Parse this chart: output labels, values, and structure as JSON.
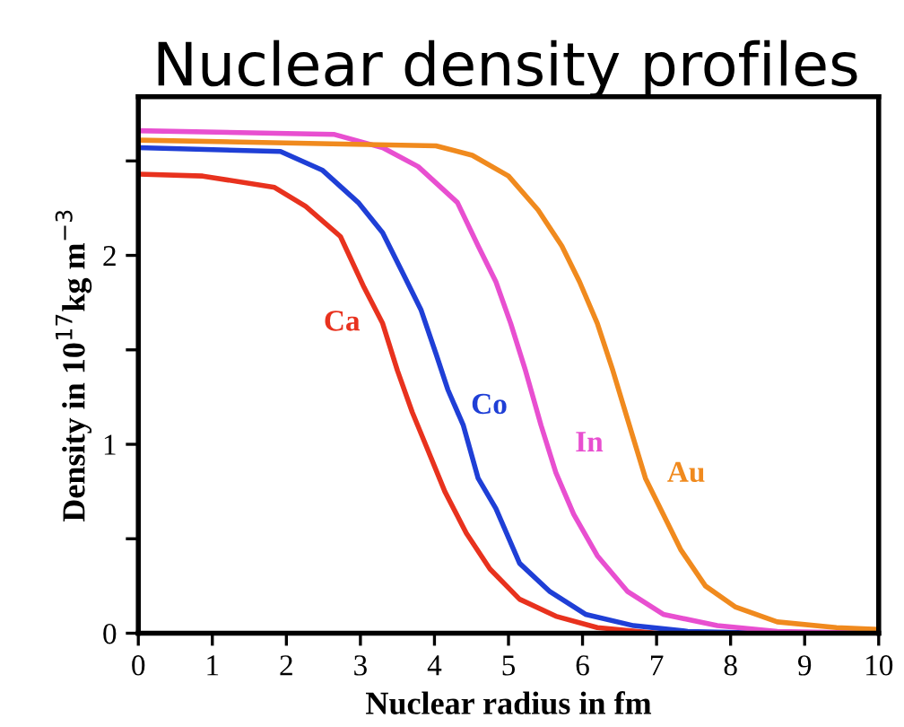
{
  "chart_data": {
    "type": "line",
    "title": "Nuclear density profiles",
    "xlabel": "Nuclear radius in fm",
    "ylabel": "Density in 10$^{17}$kg m$^{−3}$",
    "series": [
      {
        "name": "Ca",
        "color": "#e8321e",
        "x": [
          0,
          0.87,
          1.84,
          2.26,
          2.73,
          3.05,
          3.3,
          3.5,
          3.7,
          3.9,
          4.14,
          4.43,
          4.75,
          5.15,
          5.64,
          6.2,
          7.0,
          10
        ],
        "values": [
          2.43,
          2.42,
          2.36,
          2.26,
          2.1,
          1.83,
          1.64,
          1.39,
          1.17,
          0.98,
          0.75,
          0.53,
          0.34,
          0.18,
          0.09,
          0.03,
          0,
          0
        ]
      },
      {
        "name": "Co",
        "color": "#1f3fd6",
        "x": [
          0,
          1.92,
          2.49,
          2.97,
          3.3,
          3.58,
          3.82,
          4.02,
          4.18,
          4.39,
          4.59,
          4.83,
          5.15,
          5.56,
          6.04,
          6.69,
          7.42,
          8.5,
          10
        ],
        "values": [
          2.57,
          2.55,
          2.45,
          2.28,
          2.12,
          1.9,
          1.71,
          1.48,
          1.29,
          1.1,
          0.82,
          0.66,
          0.37,
          0.22,
          0.1,
          0.04,
          0.01,
          0,
          0
        ]
      },
      {
        "name": "In",
        "color": "#e84fd0",
        "x": [
          0,
          2.65,
          3.3,
          3.78,
          4.31,
          4.59,
          4.83,
          5.03,
          5.23,
          5.44,
          5.64,
          5.88,
          6.2,
          6.61,
          7.09,
          7.82,
          8.63,
          10
        ],
        "values": [
          2.66,
          2.64,
          2.57,
          2.47,
          2.28,
          2.05,
          1.86,
          1.64,
          1.39,
          1.1,
          0.85,
          0.63,
          0.41,
          0.22,
          0.1,
          0.04,
          0.01,
          0
        ]
      },
      {
        "name": "Au",
        "color": "#f08a1e",
        "x": [
          0,
          4.02,
          4.51,
          5.0,
          5.4,
          5.72,
          5.96,
          6.2,
          6.41,
          6.61,
          6.85,
          7.09,
          7.33,
          7.66,
          8.06,
          8.63,
          9.43,
          10
        ],
        "values": [
          2.61,
          2.58,
          2.53,
          2.42,
          2.24,
          2.05,
          1.86,
          1.64,
          1.39,
          1.13,
          0.82,
          0.63,
          0.44,
          0.25,
          0.14,
          0.06,
          0.03,
          0.02
        ]
      }
    ],
    "xlim": [
      0,
      10
    ],
    "ylim": [
      0,
      2.84
    ],
    "xticks": [
      0,
      1,
      2,
      3,
      4,
      5,
      6,
      7,
      8,
      9,
      10
    ],
    "yticks": [
      0,
      {
        "value": 0.5,
        "label": null
      },
      1,
      {
        "value": 1.5,
        "label": null
      },
      2,
      {
        "value": 2.5,
        "label": null
      }
    ],
    "grid": false,
    "legend": false,
    "marker": "none",
    "line_style": "solid"
  }
}
